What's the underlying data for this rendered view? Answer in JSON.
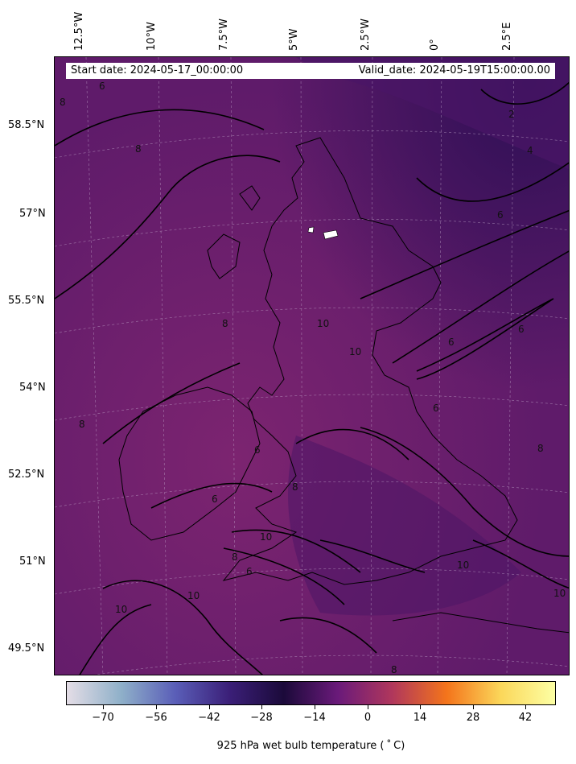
{
  "header": {
    "start_date": "Start date: 2024-05-17_00:00:00",
    "valid_date": "Valid_date: 2024-05-19T15:00:00.00"
  },
  "axes": {
    "longitudes": [
      "12.5°W",
      "10°W",
      "7.5°W",
      "5°W",
      "2.5°W",
      "0°",
      "2.5°E"
    ],
    "latitudes": [
      "58.5°N",
      "57°N",
      "55.5°N",
      "54°N",
      "52.5°N",
      "51°N",
      "49.5°N"
    ]
  },
  "contour_labels": [
    "8",
    "8",
    "6",
    "2",
    "4",
    "6",
    "10",
    "10",
    "6",
    "6",
    "8",
    "6",
    "8",
    "8",
    "6",
    "10",
    "8",
    "6",
    "10",
    "10",
    "8",
    "10",
    "10",
    "8",
    "6"
  ],
  "colorbar": {
    "ticks": [
      "−70",
      "−56",
      "−42",
      "−28",
      "−14",
      "0",
      "14",
      "28",
      "42"
    ],
    "title": "925 hPa wet bulb temperature ($^\\circ$C)",
    "title_display": "925 hPa wet bulb temperature ( ˚ C)",
    "colors": [
      "#e4dde6",
      "#8fb0c9",
      "#5a5eb8",
      "#3b1f78",
      "#1b0a3a",
      "#6a1a7a",
      "#b0375c",
      "#f4741b",
      "#fbd75a",
      "#fcffa4"
    ]
  },
  "map": {
    "fill": "#6a1f6e"
  }
}
